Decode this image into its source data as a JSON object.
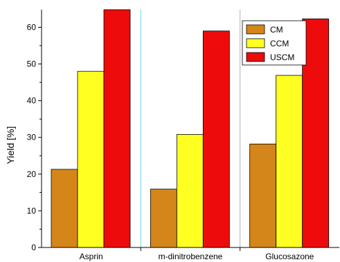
{
  "chart_data": {
    "type": "bar",
    "categories": [
      "Asprin",
      "m-dinitrobenzene",
      "Glucosazone"
    ],
    "series": [
      {
        "name": "CM",
        "color": "#d4861a",
        "values": [
          21.3,
          15.9,
          28.2
        ]
      },
      {
        "name": "CCM",
        "color": "#ffff22",
        "values": [
          48.0,
          30.8,
          46.9
        ]
      },
      {
        "name": "USCM",
        "color": "#ee0b0b",
        "values": [
          64.8,
          59.0,
          62.3
        ]
      }
    ],
    "title": "",
    "xlabel": "",
    "ylabel": "Yield [%]",
    "ylim": [
      0,
      64.8
    ],
    "yticks": [
      0,
      10,
      20,
      30,
      40,
      50,
      60
    ],
    "legend_position": "top-right",
    "grid": false,
    "separator_colors": [
      "#6fd3e6",
      "#b0b0b0"
    ]
  }
}
